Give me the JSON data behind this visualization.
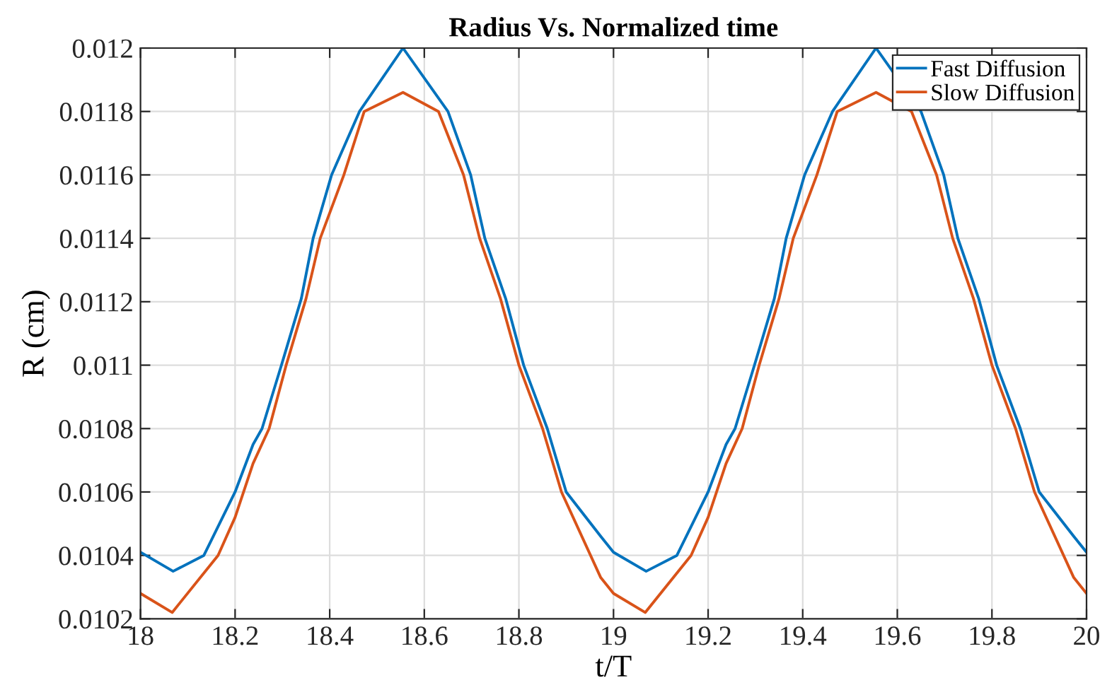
{
  "chart_data": {
    "type": "line",
    "title": "Radius Vs. Normalized time",
    "xlabel": "t/T",
    "ylabel": "R (cm)",
    "xlim": [
      18,
      20
    ],
    "xticks": [
      18,
      18.2,
      18.4,
      18.6,
      18.8,
      19,
      19.2,
      19.4,
      19.6,
      19.8,
      20
    ],
    "ylim": [
      0.0102,
      0.012
    ],
    "yticks": [
      0.0102,
      0.0104,
      0.0106,
      0.0108,
      0.011,
      0.0112,
      0.0114,
      0.0116,
      0.0118,
      0.012
    ],
    "grid": true,
    "legend": "top right",
    "line_style": "solid",
    "marker": "none",
    "series": [
      {
        "name": "Fast Diffusion",
        "color": "#0072bd",
        "x": [
          18,
          18.069,
          18.134,
          18.2,
          18.238,
          18.257,
          18.298,
          18.34,
          18.365,
          18.404,
          18.463,
          18.555,
          18.65,
          18.698,
          18.728,
          18.772,
          18.81,
          18.86,
          18.9,
          18.973,
          19,
          19.069,
          19.134,
          19.2,
          19.238,
          19.257,
          19.298,
          19.34,
          19.365,
          19.404,
          19.463,
          19.555,
          19.65,
          19.698,
          19.728,
          19.772,
          19.81,
          19.86,
          19.9,
          19.973,
          20
        ],
        "values": [
          0.01041,
          0.01035,
          0.0104,
          0.0106,
          0.01075,
          0.0108,
          0.011,
          0.01121,
          0.0114,
          0.0116,
          0.0118,
          0.012,
          0.0118,
          0.0116,
          0.0114,
          0.01121,
          0.011,
          0.0108,
          0.0106,
          0.01046,
          0.01041,
          0.01035,
          0.0104,
          0.0106,
          0.01075,
          0.0108,
          0.011,
          0.01121,
          0.0114,
          0.0116,
          0.0118,
          0.012,
          0.0118,
          0.0116,
          0.0114,
          0.01121,
          0.011,
          0.0108,
          0.0106,
          0.01046,
          0.01041
        ]
      },
      {
        "name": "Slow Diffusion",
        "color": "#d95319",
        "x": [
          18,
          18.067,
          18.164,
          18.2,
          18.238,
          18.272,
          18.308,
          18.35,
          18.38,
          18.43,
          18.473,
          18.555,
          18.63,
          18.683,
          18.717,
          18.761,
          18.8,
          18.85,
          18.89,
          18.973,
          19,
          19.067,
          19.164,
          19.2,
          19.238,
          19.272,
          19.308,
          19.35,
          19.38,
          19.43,
          19.473,
          19.555,
          19.63,
          19.683,
          19.717,
          19.761,
          19.8,
          19.85,
          19.89,
          19.973,
          20
        ],
        "values": [
          0.01028,
          0.01022,
          0.0104,
          0.01052,
          0.01069,
          0.0108,
          0.011,
          0.01121,
          0.0114,
          0.0116,
          0.0118,
          0.01186,
          0.0118,
          0.0116,
          0.0114,
          0.01121,
          0.011,
          0.0108,
          0.0106,
          0.01033,
          0.01028,
          0.01022,
          0.0104,
          0.01052,
          0.01069,
          0.0108,
          0.011,
          0.01121,
          0.0114,
          0.0116,
          0.0118,
          0.01186,
          0.0118,
          0.0116,
          0.0114,
          0.01121,
          0.011,
          0.0108,
          0.0106,
          0.01033,
          0.01028
        ]
      }
    ]
  }
}
